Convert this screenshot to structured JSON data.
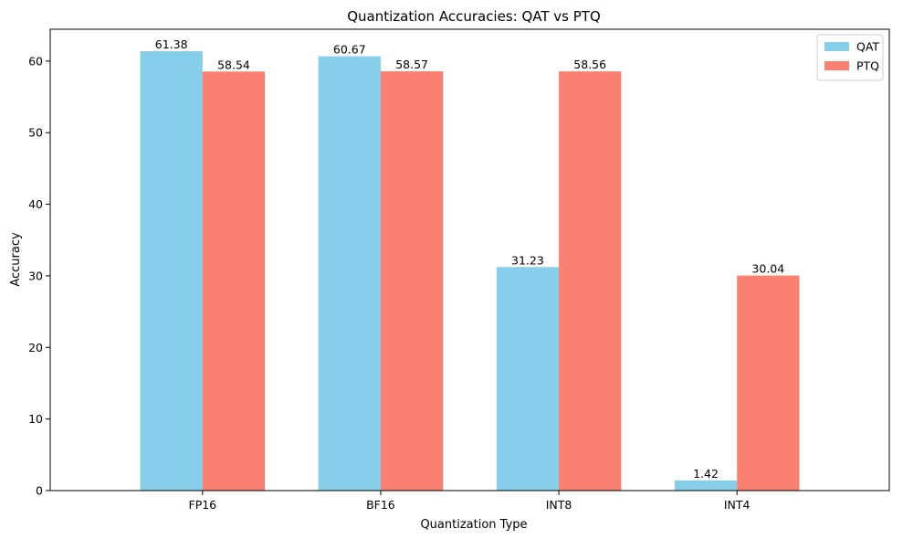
{
  "chart_data": {
    "type": "bar",
    "title": "Quantization Accuracies: QAT vs PTQ",
    "xlabel": "Quantization Type",
    "ylabel": "Accuracy",
    "categories": [
      "FP16",
      "BF16",
      "INT8",
      "INT4"
    ],
    "series": [
      {
        "name": "QAT",
        "color": "#87CEEB",
        "values": [
          61.38,
          60.67,
          31.23,
          1.42
        ]
      },
      {
        "name": "PTQ",
        "color": "#FA8072",
        "values": [
          58.54,
          58.57,
          58.56,
          30.04
        ]
      }
    ],
    "ylim": [
      0,
      64.45
    ],
    "yticks": [
      0,
      10,
      20,
      30,
      40,
      50,
      60
    ],
    "grid": false,
    "legend": "top-right",
    "data_labels": true
  }
}
